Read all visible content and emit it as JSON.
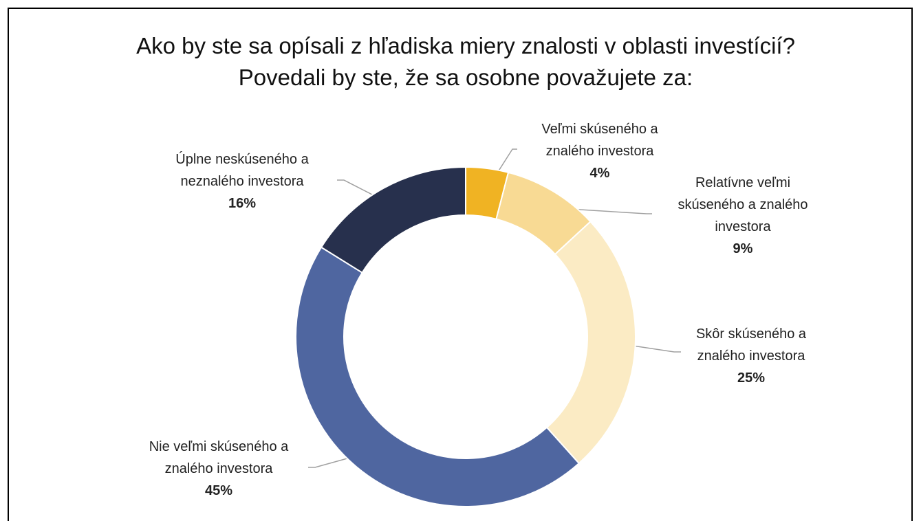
{
  "chart_data": {
    "type": "donut",
    "title": "Ako by ste sa opísali z hľadiska miery znalosti v oblasti investícií? Povedali by ste, že sa osobne považujete za:",
    "categories": [
      "Veľmi skúseného a znalého investora",
      "Relatívne veľmi skúseného a znalého investora",
      "Skôr skúseného a znalého investora",
      "Nie veľmi skúseného a znalého investora",
      "Úplne neskúseného a neznalého investora"
    ],
    "values": [
      4,
      9,
      25,
      45,
      16
    ],
    "value_labels": [
      "4%",
      "9%",
      "25%",
      "45%",
      "16%"
    ],
    "colors": [
      "#f0b323",
      "#f8da94",
      "#fbebc4",
      "#4f66a0",
      "#27304d"
    ]
  }
}
